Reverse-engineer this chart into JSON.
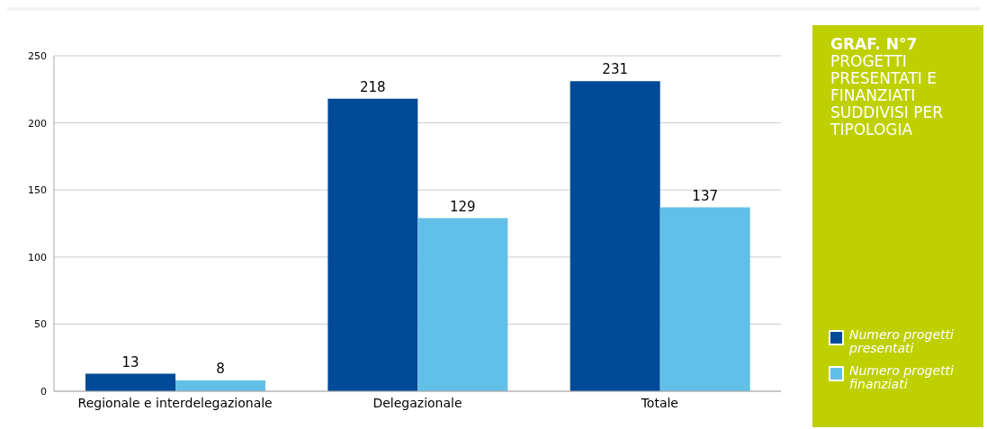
{
  "chart_data": {
    "type": "bar",
    "title": "GRAF. N°7",
    "subtitle": "PROGETTI PRESENTATI E FINANZIATI SUDDIVISI PER TIPOLOGIA",
    "categories": [
      "Regionale e interdelegazionale",
      "Delegazionale",
      "Totale"
    ],
    "series": [
      {
        "name": "Numero progetti presentati",
        "color": "#004a97",
        "values": [
          13,
          218,
          231
        ]
      },
      {
        "name": "Numero progetti finanziati",
        "color": "#62c0e8",
        "values": [
          8,
          129,
          137
        ]
      }
    ],
    "ylim": [
      0,
      250
    ],
    "yticks": [
      0,
      50,
      100,
      150,
      200,
      250
    ],
    "grid": "y",
    "legend": "right",
    "data_labels": true
  }
}
